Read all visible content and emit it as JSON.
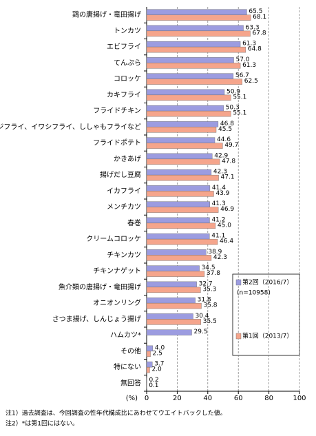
{
  "chart_data": {
    "type": "bar",
    "orientation": "horizontal",
    "categories": [
      "鶏の唐揚げ・竜田揚げ",
      "トンカツ",
      "エビフライ",
      "てんぷら",
      "コロッケ",
      "カキフライ",
      "フライドチキン",
      "アジフライ、イワシフライ、ししゃもフライなど",
      "フライドポテト",
      "かきあげ",
      "揚げだし豆腐",
      "イカフライ",
      "メンチカツ",
      "春巻",
      "クリームコロッケ",
      "チキンカツ",
      "チキンナゲット",
      "魚介類の唐揚げ・竜田揚げ",
      "オニオンリング",
      "さつま揚げ、しんじょう揚げ",
      "ハムカツ*",
      "その他",
      "特にない",
      "無回答"
    ],
    "series": [
      {
        "name": "第2回（2016/7）",
        "color": "#9c9ce0",
        "values": [
          65.5,
          63.3,
          61.3,
          57.0,
          56.7,
          50.9,
          50.3,
          46.8,
          44.6,
          42.9,
          42.3,
          41.4,
          41.3,
          41.2,
          41.1,
          38.9,
          34.5,
          32.7,
          31.8,
          30.4,
          29.5,
          4.0,
          3.7,
          0.2
        ],
        "value_labels": [
          "65.5",
          "63.3",
          "61.3",
          "57.0",
          "56.7",
          "50.9",
          "50.3",
          "46.8",
          "44.6",
          "42.9",
          "42.3",
          "41.4",
          "41.3",
          "41.2",
          "41.1",
          "38.9",
          "34.5",
          "32.7",
          "31.8",
          "30.4",
          "29.5",
          "4.0",
          "3.7",
          "0.2"
        ]
      },
      {
        "name": "第1回（2013/7）",
        "color": "#f5a58c",
        "values": [
          68.1,
          67.8,
          64.8,
          61.3,
          62.5,
          55.1,
          55.1,
          45.5,
          49.7,
          47.8,
          47.1,
          43.9,
          46.9,
          45.0,
          46.4,
          42.3,
          37.8,
          35.3,
          35.8,
          35.5,
          null,
          2.5,
          2.0,
          0.1
        ],
        "value_labels": [
          "68.1",
          "67.8",
          "64.8",
          "61.3",
          "62.5",
          "55.1",
          "55.1",
          "45.5",
          "49.7",
          "47.8",
          "47.1",
          "43.9",
          "46.9",
          "45.0",
          "46.4",
          "42.3",
          "37.8",
          "35.3",
          "35.8",
          "35.5",
          null,
          "2.5",
          "2.0",
          "0.1"
        ]
      }
    ],
    "legend_note": "(n=10958)",
    "xlabel": "(%)",
    "xlim": [
      0,
      100
    ],
    "xticks": [
      0,
      20,
      40,
      60,
      80,
      100
    ],
    "grid": true,
    "notes": [
      "注1）過去調査は、今回調査の性年代構成比にあわせてウエイトバックした値。",
      "注2）*は第1回にはない。"
    ]
  }
}
